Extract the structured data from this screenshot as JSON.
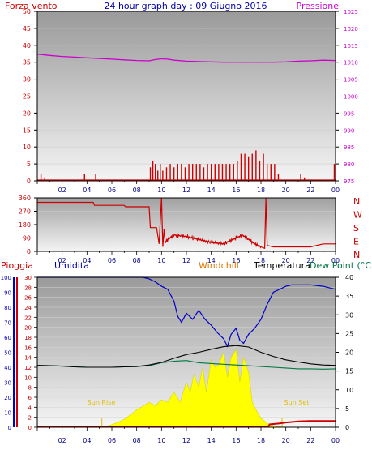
{
  "title": "24 hour graph day : 09 Giugno 2016",
  "top": {
    "left_label": "Forza vento",
    "right_label": "Pressione",
    "left_ticks": [
      0,
      5,
      10,
      15,
      20,
      25,
      30,
      35,
      40,
      45,
      50
    ],
    "right_ticks": [
      975,
      980,
      985,
      990,
      995,
      1000,
      1005,
      1010,
      1015,
      1020,
      1025
    ],
    "x_ticks": [
      "02",
      "04",
      "06",
      "08",
      "10",
      "12",
      "14",
      "16",
      "18",
      "20",
      "22",
      "00"
    ]
  },
  "middle": {
    "left_ticks": [
      0,
      90,
      180,
      270,
      360
    ],
    "right_labels": [
      "N",
      "W",
      "S",
      "E",
      "N"
    ],
    "x_ticks": [
      "02",
      "04",
      "06",
      "08",
      "10",
      "12",
      "14",
      "16",
      "18",
      "20",
      "22",
      "00"
    ]
  },
  "bottom": {
    "label_rain": "Pioggia",
    "label_humidity": "Umidita",
    "label_windchill": "Windchill",
    "label_temperature": "Temperatura",
    "label_dewpoint": "Dew Point (°C",
    "left_ticks_humidity": [
      0,
      10,
      20,
      30,
      40,
      50,
      60,
      70,
      80,
      90,
      100
    ],
    "left_ticks_rain": [
      0,
      2,
      4,
      6,
      8,
      10,
      12,
      14,
      16,
      18,
      20,
      22,
      24,
      26,
      28,
      30
    ],
    "right_ticks_temp": [
      0,
      5,
      10,
      15,
      20,
      25,
      30,
      35,
      40
    ],
    "sunrise_label": "Sun Rise",
    "sunset_label": "Sun Set",
    "x_ticks": [
      "02",
      "04",
      "06",
      "08",
      "10",
      "12",
      "14",
      "16",
      "18",
      "20",
      "22",
      "00"
    ]
  },
  "colors": {
    "wind": "#cc0000",
    "pressure": "#cc00cc",
    "direction": "#cc0000",
    "humidity": "#0000cc",
    "temperature": "#000000",
    "dewpoint": "#007744",
    "solar": "#ffff00",
    "rain": "#cc0000",
    "windchill_label": "#dd7700",
    "rain_label": "#cc0000"
  },
  "chart_data": [
    {
      "type": "line",
      "panel": "top",
      "series": [
        {
          "name": "Forza vento",
          "axis": "left",
          "style": "bars",
          "x": [
            0.3,
            0.6,
            3.8,
            4.7,
            9.1,
            9.3,
            9.5,
            9.7,
            9.9,
            10.1,
            10.4,
            10.7,
            11.0,
            11.3,
            11.6,
            11.9,
            12.2,
            12.5,
            12.8,
            13.1,
            13.4,
            13.7,
            14.0,
            14.3,
            14.6,
            14.9,
            15.2,
            15.5,
            15.8,
            16.1,
            16.4,
            16.7,
            17.0,
            17.3,
            17.6,
            17.9,
            18.2,
            18.5,
            18.8,
            19.1,
            19.4,
            21.2,
            21.5,
            23.9
          ],
          "y": [
            2,
            1,
            2,
            2,
            4,
            6,
            5,
            3,
            5,
            3,
            4,
            5,
            4,
            5,
            5,
            4,
            5,
            5,
            5,
            5,
            4,
            5,
            5,
            5,
            5,
            5,
            5,
            5,
            5,
            6,
            8,
            8,
            7,
            8,
            9,
            6,
            8,
            5,
            5,
            5,
            2,
            2,
            1,
            5
          ]
        },
        {
          "name": "Pressione",
          "axis": "right",
          "x": [
            0,
            1,
            2,
            3,
            4,
            5,
            6,
            7,
            8,
            9,
            9.5,
            10,
            10.5,
            11,
            12,
            13,
            14,
            15,
            16,
            17,
            18,
            19,
            20,
            21,
            22,
            23,
            24
          ],
          "y": [
            1012.4,
            1012.0,
            1011.7,
            1011.5,
            1011.3,
            1011.1,
            1010.9,
            1010.7,
            1010.5,
            1010.4,
            1010.8,
            1011.0,
            1010.9,
            1010.6,
            1010.3,
            1010.2,
            1010.1,
            1010.0,
            1010.0,
            1010.0,
            1010.0,
            1010.0,
            1010.1,
            1010.3,
            1010.4,
            1010.6,
            1010.5
          ]
        }
      ],
      "ylim_left": [
        0,
        50
      ],
      "ylim_right": [
        975,
        1025
      ],
      "xlim": [
        0,
        24
      ]
    },
    {
      "type": "line",
      "panel": "middle",
      "series": [
        {
          "name": "direction",
          "axis": "left",
          "x": [
            0,
            2,
            4.5,
            4.6,
            7,
            7.1,
            9.0,
            9.1,
            9.6,
            9.8,
            10.0,
            10.1,
            10.2,
            10.3,
            10.5,
            11,
            12,
            13,
            14,
            15,
            16,
            16.5,
            17,
            17.5,
            18,
            18.3,
            18.4,
            18.5,
            19,
            20,
            21,
            22,
            23,
            24
          ],
          "y": [
            330,
            330,
            330,
            310,
            310,
            300,
            300,
            160,
            160,
            50,
            360,
            30,
            150,
            60,
            80,
            110,
            100,
            80,
            60,
            50,
            90,
            110,
            80,
            50,
            30,
            20,
            360,
            40,
            30,
            30,
            30,
            30,
            50,
            50
          ]
        }
      ],
      "ylim": [
        0,
        360
      ],
      "xlim": [
        0,
        24
      ]
    },
    {
      "type": "line",
      "panel": "bottom",
      "series": [
        {
          "name": "Umidita",
          "axis": "humidity",
          "x": [
            0,
            2,
            4,
            6,
            7,
            8,
            8.5,
            9,
            9.5,
            10,
            10.5,
            11,
            11.3,
            11.6,
            12,
            12.5,
            13,
            13.5,
            14,
            14.5,
            15,
            15.3,
            15.6,
            16,
            16.3,
            16.6,
            17,
            17.5,
            18,
            18.5,
            19,
            19.5,
            20,
            20.5,
            21,
            22,
            23,
            24
          ],
          "y": [
            100,
            100,
            100,
            100,
            100,
            100,
            100,
            99,
            97,
            94,
            92,
            84,
            74,
            70,
            76,
            72,
            78,
            72,
            68,
            63,
            59,
            54,
            62,
            66,
            58,
            56,
            62,
            66,
            72,
            82,
            90,
            92,
            94,
            95,
            95,
            95,
            94,
            92
          ]
        },
        {
          "name": "Temperatura",
          "axis": "temp",
          "x": [
            0,
            1,
            2,
            3,
            4,
            5,
            6,
            7,
            8,
            9,
            10,
            11,
            12,
            13,
            14,
            15,
            16,
            17,
            18,
            19,
            20,
            21,
            22,
            23,
            24
          ],
          "y": [
            16.5,
            16.4,
            16.3,
            16.1,
            16.0,
            16.0,
            16.0,
            16.1,
            16.2,
            16.6,
            17.3,
            18.4,
            19.4,
            20.0,
            20.8,
            21.5,
            21.8,
            21.4,
            20.0,
            18.9,
            18.0,
            17.4,
            16.9,
            16.6,
            16.5
          ]
        },
        {
          "name": "Dew Point",
          "axis": "temp",
          "x": [
            0,
            1,
            2,
            3,
            4,
            5,
            6,
            7,
            8,
            9,
            10,
            11,
            12,
            13,
            14,
            15,
            16,
            17,
            18,
            19,
            20,
            21,
            22,
            23,
            24
          ],
          "y": [
            16.5,
            16.4,
            16.3,
            16.1,
            16.0,
            16.0,
            16.0,
            16.1,
            16.2,
            16.4,
            17.2,
            17.6,
            17.8,
            17.2,
            17.0,
            16.8,
            16.6,
            16.4,
            16.2,
            16.0,
            15.8,
            15.6,
            15.6,
            15.5,
            15.6
          ]
        },
        {
          "name": "solar",
          "axis": "rain",
          "style": "area",
          "x": [
            5,
            5.5,
            6,
            6.5,
            7,
            7.5,
            8,
            8.5,
            9,
            9.5,
            10,
            10.5,
            11,
            11.5,
            12,
            12.3,
            12.6,
            13,
            13.3,
            13.6,
            14,
            14.3,
            14.6,
            15,
            15.3,
            15.6,
            16,
            16.3,
            16.6,
            17,
            17.3,
            17.6,
            18,
            18.5,
            19,
            19.5,
            20
          ],
          "y": [
            0,
            0.2,
            0.5,
            1,
            1.6,
            2.5,
            3.5,
            4.2,
            5,
            4.3,
            5.5,
            5,
            7,
            5,
            9,
            7,
            10.5,
            8,
            12,
            7,
            13.5,
            12,
            12.5,
            15,
            10,
            14,
            15.5,
            9,
            14,
            11,
            5,
            3.5,
            1.8,
            0.8,
            0.3,
            0.1,
            0
          ]
        },
        {
          "name": "Pioggia",
          "axis": "rain",
          "x": [
            0,
            18.6,
            18.7,
            19.5,
            20,
            21,
            22,
            23,
            24
          ],
          "y": [
            0,
            0,
            0.4,
            0.6,
            0.8,
            1.0,
            1.1,
            1.1,
            1.1
          ]
        }
      ],
      "ylim_humidity": [
        0,
        100
      ],
      "ylim_rain": [
        0,
        30
      ],
      "ylim_temp": [
        0,
        40
      ],
      "xlim": [
        0,
        24
      ]
    }
  ]
}
